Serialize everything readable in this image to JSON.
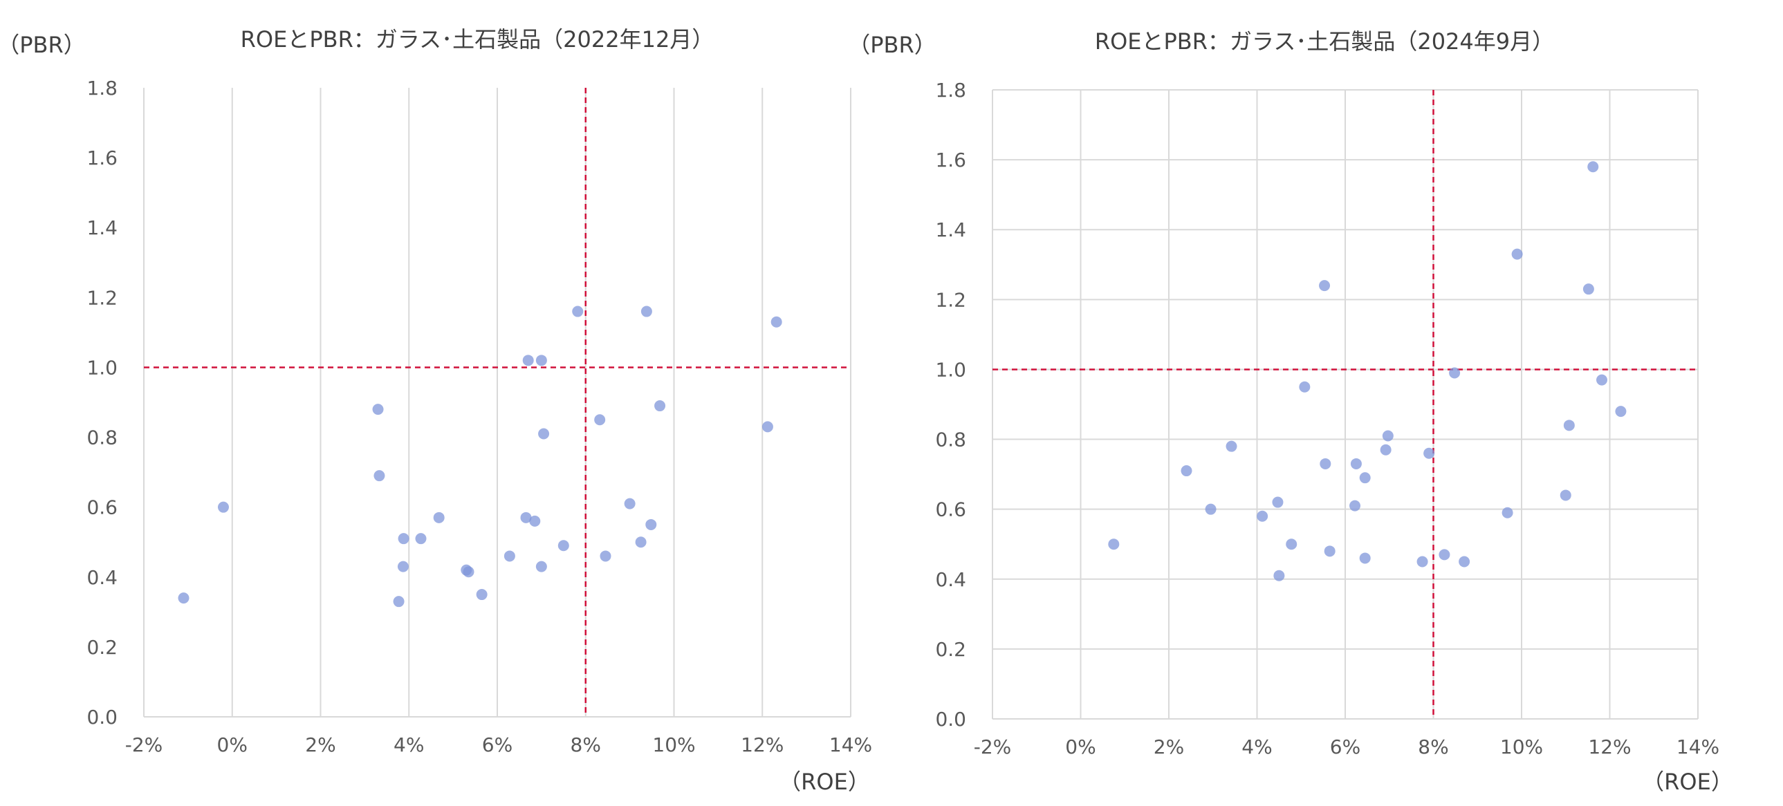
{
  "chart_data": [
    {
      "type": "scatter",
      "title": "ROEとPBR：ガラス･土石製品（2022年12月）",
      "xlabel": "（ROE）",
      "ylabel": "（PBR）",
      "xlim": [
        -0.02,
        0.14
      ],
      "ylim": [
        0,
        1.8
      ],
      "x_ticks": [
        "-2%",
        "0%",
        "2%",
        "4%",
        "6%",
        "8%",
        "10%",
        "12%",
        "14%"
      ],
      "x_tick_values": [
        -0.02,
        0.0,
        0.02,
        0.04,
        0.06,
        0.08,
        0.1,
        0.12,
        0.14
      ],
      "y_ticks": [
        "0.0",
        "0.2",
        "0.4",
        "0.6",
        "0.8",
        "1.0",
        "1.2",
        "1.4",
        "1.6",
        "1.8"
      ],
      "y_tick_values": [
        0,
        0.2,
        0.4,
        0.6,
        0.8,
        1.0,
        1.2,
        1.4,
        1.6,
        1.8
      ],
      "reference_lines": {
        "x": 0.08,
        "y": 1.0,
        "color": "#d0103a",
        "style": "dashed"
      },
      "grid": "vertical",
      "point_color": "#7f96d9",
      "points": [
        {
          "x": -0.011,
          "y": 0.34
        },
        {
          "x": -0.002,
          "y": 0.6
        },
        {
          "x": 0.033,
          "y": 0.88
        },
        {
          "x": 0.0333,
          "y": 0.69
        },
        {
          "x": 0.0377,
          "y": 0.33
        },
        {
          "x": 0.0387,
          "y": 0.43
        },
        {
          "x": 0.0388,
          "y": 0.51
        },
        {
          "x": 0.0427,
          "y": 0.51
        },
        {
          "x": 0.0468,
          "y": 0.57
        },
        {
          "x": 0.053,
          "y": 0.42
        },
        {
          "x": 0.0535,
          "y": 0.415
        },
        {
          "x": 0.0565,
          "y": 0.35
        },
        {
          "x": 0.0628,
          "y": 0.46
        },
        {
          "x": 0.0665,
          "y": 0.57
        },
        {
          "x": 0.067,
          "y": 1.02
        },
        {
          "x": 0.0685,
          "y": 0.56
        },
        {
          "x": 0.07,
          "y": 1.02
        },
        {
          "x": 0.07,
          "y": 0.43
        },
        {
          "x": 0.0705,
          "y": 0.81
        },
        {
          "x": 0.075,
          "y": 0.49
        },
        {
          "x": 0.0782,
          "y": 1.16
        },
        {
          "x": 0.0832,
          "y": 0.85
        },
        {
          "x": 0.0845,
          "y": 0.46
        },
        {
          "x": 0.09,
          "y": 0.61
        },
        {
          "x": 0.0925,
          "y": 0.5
        },
        {
          "x": 0.0938,
          "y": 1.16
        },
        {
          "x": 0.0948,
          "y": 0.55
        },
        {
          "x": 0.0968,
          "y": 0.89
        },
        {
          "x": 0.1212,
          "y": 0.83
        },
        {
          "x": 0.1232,
          "y": 1.13
        }
      ]
    },
    {
      "type": "scatter",
      "title": "ROEとPBR：ガラス･土石製品（2024年9月）",
      "xlabel": "（ROE）",
      "ylabel": "（PBR）",
      "xlim": [
        -0.02,
        0.14
      ],
      "ylim": [
        0,
        1.8
      ],
      "x_ticks": [
        "-2%",
        "0%",
        "2%",
        "4%",
        "6%",
        "8%",
        "10%",
        "12%",
        "14%"
      ],
      "x_tick_values": [
        -0.02,
        0.0,
        0.02,
        0.04,
        0.06,
        0.08,
        0.1,
        0.12,
        0.14
      ],
      "y_ticks": [
        "0.0",
        "0.2",
        "0.4",
        "0.6",
        "0.8",
        "1.0",
        "1.2",
        "1.4",
        "1.6",
        "1.8"
      ],
      "y_tick_values": [
        0,
        0.2,
        0.4,
        0.6,
        0.8,
        1.0,
        1.2,
        1.4,
        1.6,
        1.8
      ],
      "reference_lines": {
        "x": 0.08,
        "y": 1.0,
        "color": "#d0103a",
        "style": "dashed"
      },
      "grid": "both",
      "point_color": "#7f96d9",
      "points": [
        {
          "x": 0.0075,
          "y": 0.5
        },
        {
          "x": 0.024,
          "y": 0.71
        },
        {
          "x": 0.0295,
          "y": 0.6
        },
        {
          "x": 0.0342,
          "y": 0.78
        },
        {
          "x": 0.0412,
          "y": 0.58
        },
        {
          "x": 0.0447,
          "y": 0.62
        },
        {
          "x": 0.045,
          "y": 0.41
        },
        {
          "x": 0.0478,
          "y": 0.5
        },
        {
          "x": 0.0508,
          "y": 0.95
        },
        {
          "x": 0.0553,
          "y": 1.24
        },
        {
          "x": 0.0555,
          "y": 0.73
        },
        {
          "x": 0.0565,
          "y": 0.48
        },
        {
          "x": 0.0622,
          "y": 0.61
        },
        {
          "x": 0.0625,
          "y": 0.73
        },
        {
          "x": 0.0645,
          "y": 0.69
        },
        {
          "x": 0.0645,
          "y": 0.46
        },
        {
          "x": 0.0692,
          "y": 0.77
        },
        {
          "x": 0.0697,
          "y": 0.81
        },
        {
          "x": 0.0775,
          "y": 0.45
        },
        {
          "x": 0.079,
          "y": 0.76
        },
        {
          "x": 0.0825,
          "y": 0.47
        },
        {
          "x": 0.0848,
          "y": 0.99
        },
        {
          "x": 0.087,
          "y": 0.45
        },
        {
          "x": 0.0968,
          "y": 0.59
        },
        {
          "x": 0.099,
          "y": 1.33
        },
        {
          "x": 0.11,
          "y": 0.64
        },
        {
          "x": 0.1108,
          "y": 0.84
        },
        {
          "x": 0.1152,
          "y": 1.23
        },
        {
          "x": 0.1162,
          "y": 1.58
        },
        {
          "x": 0.1182,
          "y": 0.97
        },
        {
          "x": 0.1225,
          "y": 0.88
        }
      ]
    }
  ]
}
